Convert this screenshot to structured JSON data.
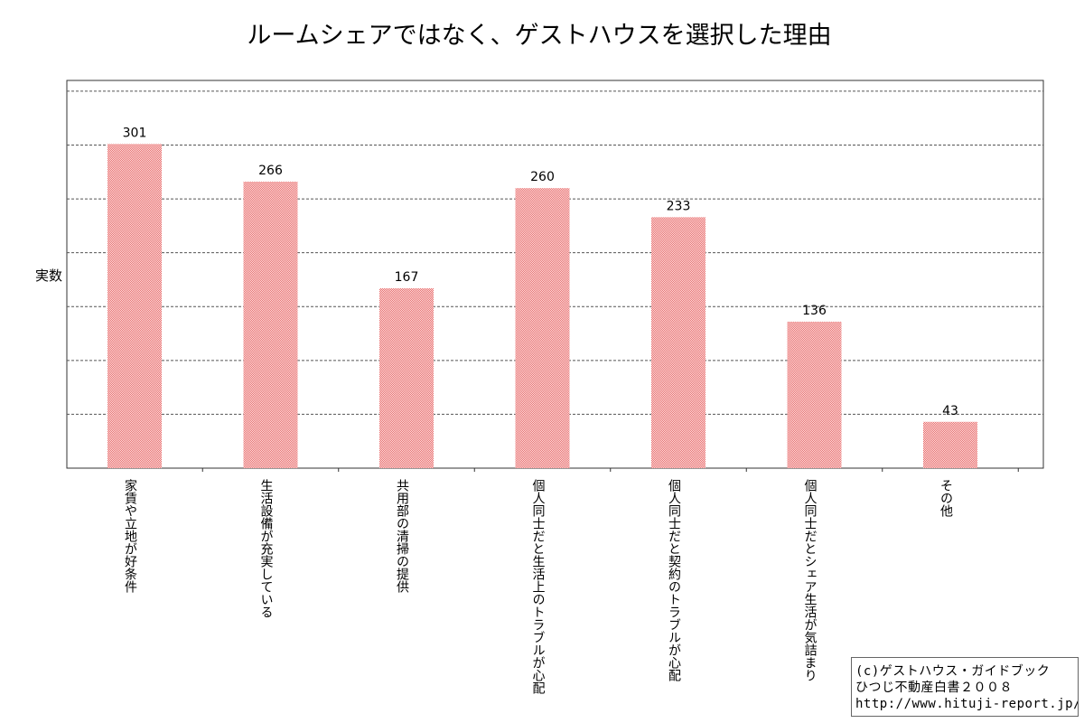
{
  "chart_data": {
    "type": "bar",
    "title": "ルームシェアではなく、ゲストハウスを選択した理由",
    "ylabel": "実数",
    "xlabel": "",
    "ylim": [
      0,
      360
    ],
    "grid": true,
    "categories": [
      "家賃や立地が好条件",
      "生活設備が充実している",
      "共用部の清掃の提供",
      "個人同士だと生活上のトラブルが心配",
      "個人同士だと契約のトラブルが心配",
      "個人同士だとシェア生活が気詰まり",
      "その他"
    ],
    "values": [
      301,
      266,
      167,
      260,
      233,
      136,
      43
    ]
  },
  "credit": {
    "line1": "(c)ゲストハウス・ガイドブック",
    "line2": "ひつじ不動産白書２００８",
    "line3": "http://www.hituji-report.jp/"
  },
  "colors": {
    "bar_fill": "#f4b8b8",
    "bar_pattern": "#e87b7b",
    "grid": "#555555",
    "axis": "#333333"
  }
}
